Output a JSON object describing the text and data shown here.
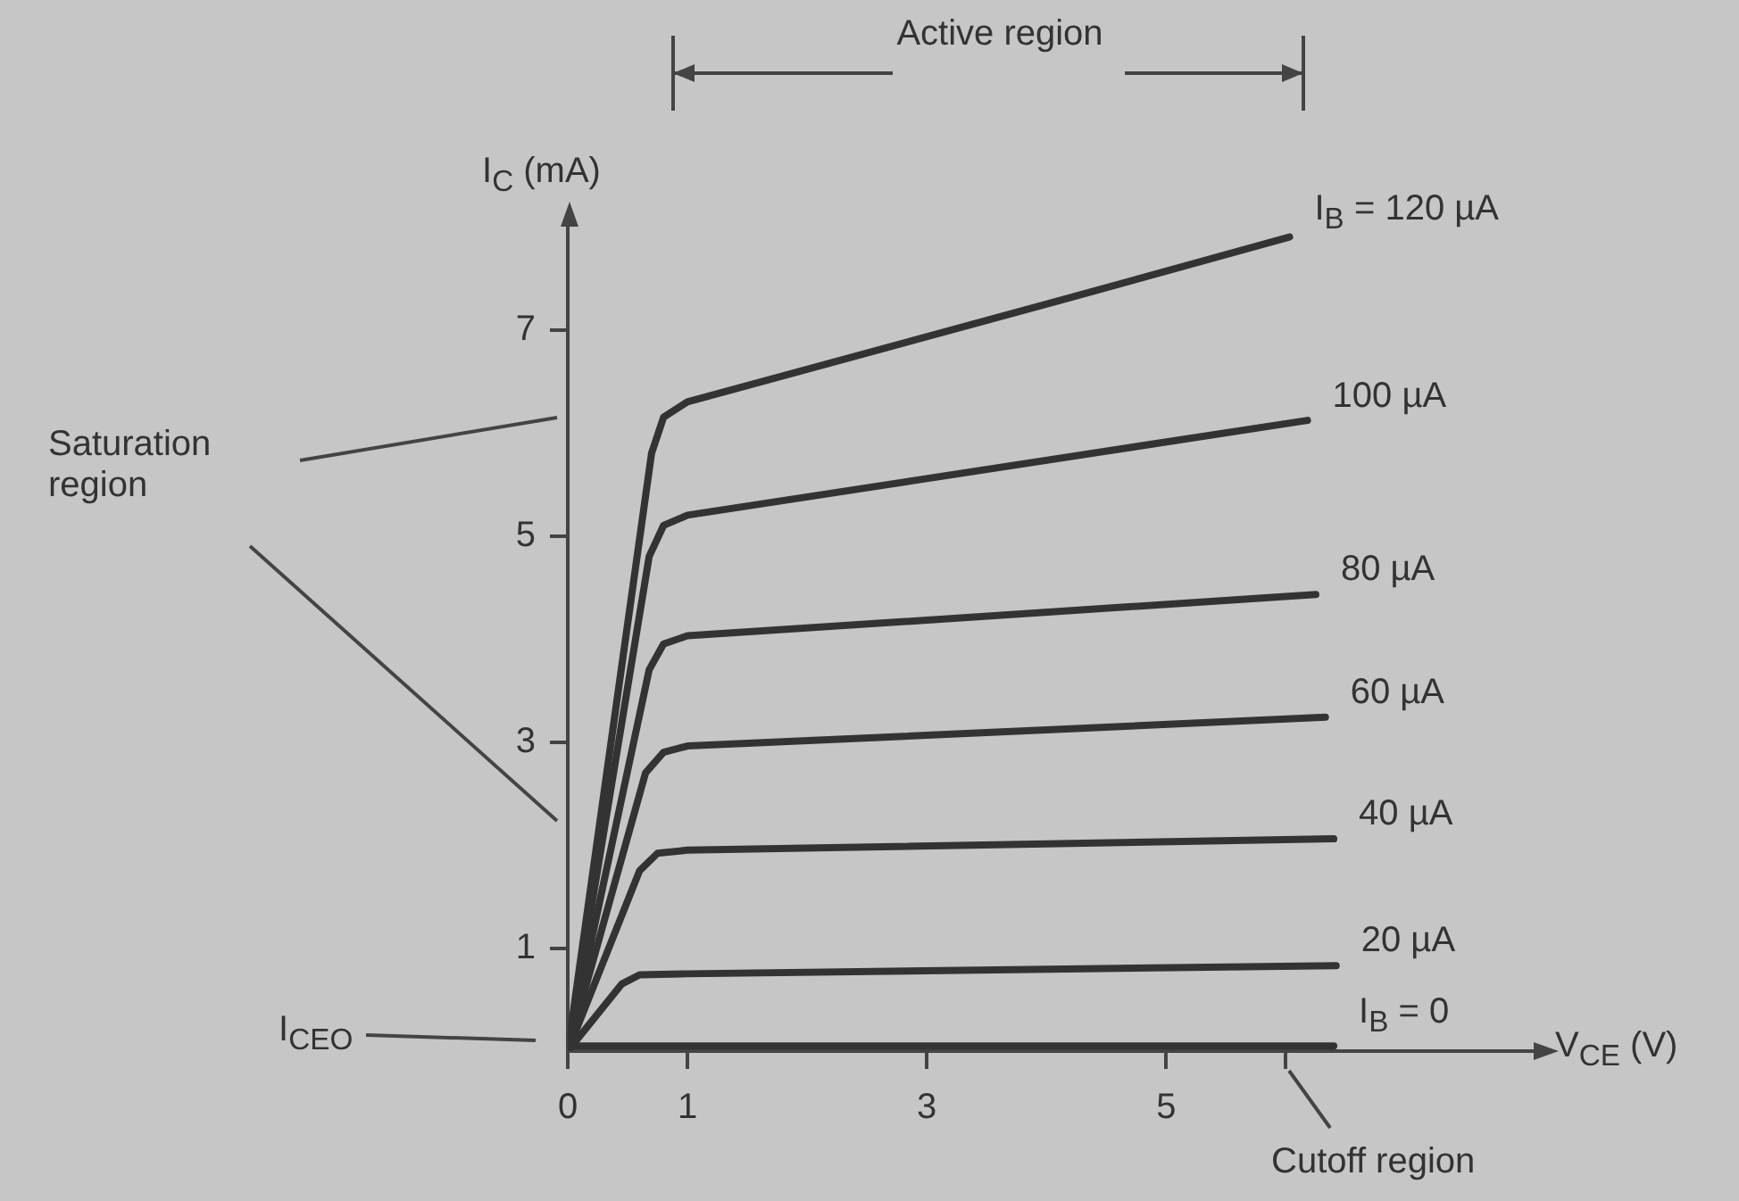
{
  "chart_data": {
    "type": "line",
    "xlabel": "V$_{CE}$ (V)",
    "ylabel": "I$_{C}$ (mA)",
    "xlim": [
      0,
      8.1
    ],
    "ylim": [
      0,
      8
    ],
    "xticks": [
      0,
      1,
      3,
      5,
      {
        "value": 6,
        "label": null
      }
    ],
    "yticks": [
      1,
      3,
      5,
      7
    ],
    "grid": false,
    "legend": false,
    "marker": "none",
    "line_style": "solid",
    "annotations": [
      "Active region",
      "Saturation region",
      "I$_{CEO}$",
      "Cutoff region"
    ],
    "series": [
      {
        "name": "I$_{B}$ = 120 µA",
        "color": "#333333",
        "x": [
          0,
          0.7,
          0.8,
          1.0,
          4.1,
          6.03
        ],
        "values": [
          0,
          5.8,
          6.15,
          6.3,
          7.28,
          7.9
        ]
      },
      {
        "name": "100 µA",
        "color": "#333333",
        "x": [
          0,
          0.68,
          0.8,
          1.0,
          6.18
        ],
        "values": [
          0,
          4.8,
          5.1,
          5.2,
          6.12
        ]
      },
      {
        "name": "80 µA",
        "color": "#333333",
        "x": [
          0,
          0.68,
          0.8,
          1.0,
          6.25
        ],
        "values": [
          0,
          3.7,
          3.95,
          4.03,
          4.43
        ]
      },
      {
        "name": "60 µA",
        "color": "#333333",
        "x": [
          0,
          0.65,
          0.8,
          1.0,
          6.33
        ],
        "values": [
          0,
          2.7,
          2.9,
          2.96,
          3.24
        ]
      },
      {
        "name": "40 µA",
        "color": "#333333",
        "x": [
          0,
          0.6,
          0.75,
          1.0,
          6.4
        ],
        "values": [
          0,
          1.75,
          1.92,
          1.95,
          2.06
        ]
      },
      {
        "name": "20 µA",
        "color": "#333333",
        "x": [
          0,
          0.45,
          0.6,
          1.0,
          6.42
        ],
        "values": [
          0,
          0.65,
          0.74,
          0.75,
          0.83
        ]
      },
      {
        "name": "I$_{B}$ = 0",
        "color": "#333333",
        "x": [
          0,
          6.4
        ],
        "values": [
          0.05,
          0.05
        ]
      }
    ]
  }
}
